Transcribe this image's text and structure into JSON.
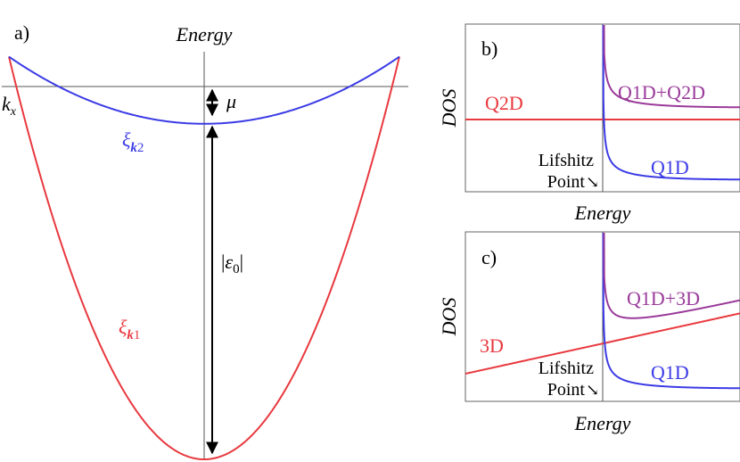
{
  "colors": {
    "red": "#e8393f",
    "blue": "#3b3be6",
    "purple": "#9a3a9a",
    "black": "#000000",
    "axis": "#555555",
    "frame": "#666666"
  },
  "chart_data": [
    {
      "id": "a",
      "type": "line",
      "panel_label": "a)",
      "ylabel": "Energy",
      "xlabel": "k_x",
      "annotations": {
        "mu": "μ",
        "eps0": "|ε0|",
        "xi2": "ξk2",
        "xi1": "ξk1"
      },
      "series": [
        {
          "name": "ξk1",
          "color": "#e8393f",
          "curve": "parabola",
          "min_energy": -1.0,
          "k_range": [
            -1,
            1
          ],
          "energy_at_k_edge": 0.08
        },
        {
          "name": "ξk2",
          "color": "#3b3be6",
          "curve": "parabola",
          "min_energy": -0.1,
          "k_range": [
            -1,
            1
          ],
          "energy_at_k_edge": 0.08
        }
      ],
      "chemical_potential": 0.0
    },
    {
      "id": "b",
      "type": "line",
      "panel_label": "b)",
      "xlabel": "Energy",
      "ylabel": "DOS",
      "point_label_line1": "Lifshitz",
      "point_label_line2": "Point",
      "point_arrow": "↘",
      "lifshitz_point": 0.0,
      "series": [
        {
          "name": "Q2D",
          "color": "#e8393f",
          "form": "constant",
          "value": 0.42
        },
        {
          "name": "Q1D",
          "color": "#3b3be6",
          "form": "inverse_sqrt"
        },
        {
          "name": "Q1D+Q2D",
          "color": "#9a3a9a",
          "form": "sum"
        }
      ]
    },
    {
      "id": "c",
      "type": "line",
      "panel_label": "c)",
      "xlabel": "Energy",
      "ylabel": "DOS",
      "point_label_line1": "Lifshitz",
      "point_label_line2": "Point",
      "point_arrow": "↘",
      "lifshitz_point": 0.0,
      "series": [
        {
          "name": "3D",
          "color": "#e8393f",
          "form": "sqrt"
        },
        {
          "name": "Q1D",
          "color": "#3b3be6",
          "form": "inverse_sqrt"
        },
        {
          "name": "Q1D+3D",
          "color": "#9a3a9a",
          "form": "sum"
        }
      ]
    }
  ]
}
